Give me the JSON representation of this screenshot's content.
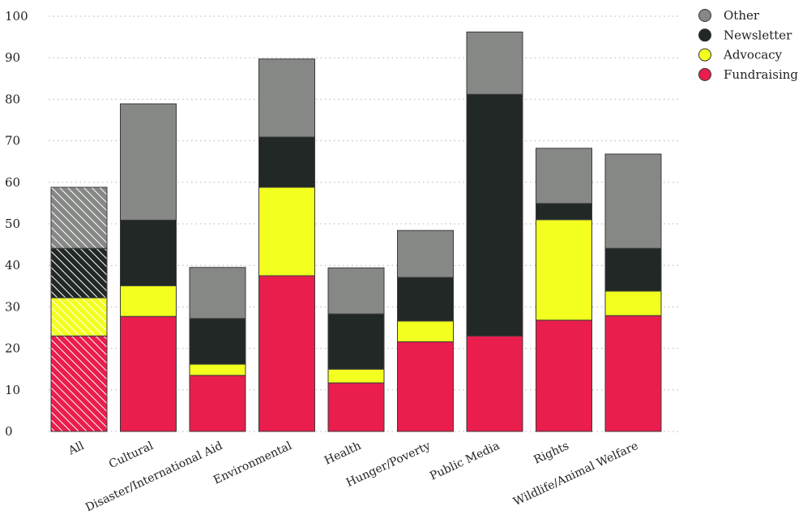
{
  "chart_data": {
    "type": "bar",
    "stacked": true,
    "categories": [
      "All",
      "Cultural",
      "Disaster/International Aid",
      "Environmental",
      "Health",
      "Hunger/Poverty",
      "Public Media",
      "Rights",
      "Wildlife/Animal Welfare"
    ],
    "series": [
      {
        "name": "Fundraising",
        "color": "#e91e4d",
        "values": [
          23,
          27.7,
          13.5,
          37.5,
          11.7,
          21.6,
          23,
          26.8,
          27.9
        ]
      },
      {
        "name": "Advocacy",
        "color": "#f2ff1f",
        "values": [
          9.2,
          7.4,
          2.7,
          21.3,
          3.3,
          5,
          0,
          24.2,
          5.9
        ]
      },
      {
        "name": "Newsletter",
        "color": "#222825",
        "values": [
          11.9,
          15.8,
          11,
          12.1,
          13.3,
          10.5,
          58.2,
          3.9,
          10.3
        ]
      },
      {
        "name": "Other",
        "color": "#868886",
        "values": [
          14.7,
          28,
          12.3,
          18.8,
          11.1,
          11.3,
          15,
          13.3,
          22.7
        ]
      }
    ],
    "hatched_categories": [
      "All"
    ],
    "ylim": [
      0,
      100
    ],
    "yticks": [
      0,
      10,
      20,
      30,
      40,
      50,
      60,
      70,
      80,
      90,
      100
    ],
    "grid": "horizontal dotted",
    "legend": "top-right",
    "legend_order": [
      "Other",
      "Newsletter",
      "Advocacy",
      "Fundraising"
    ],
    "title": "",
    "xlabel": "",
    "ylabel": ""
  }
}
